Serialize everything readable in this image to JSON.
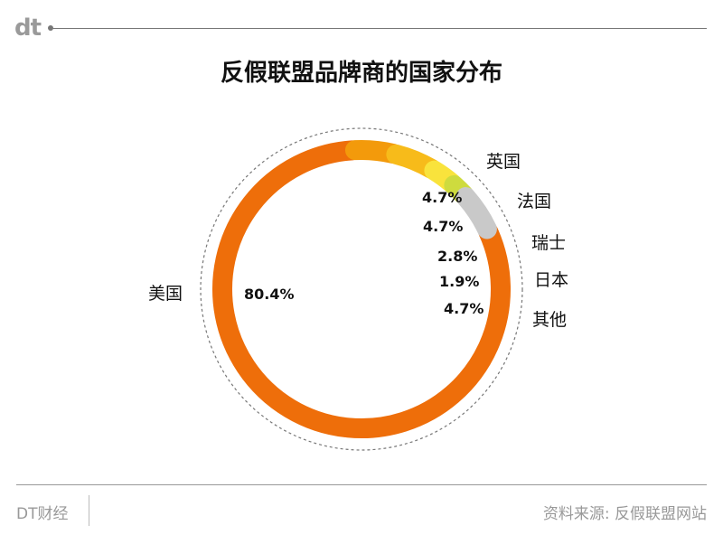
{
  "header": {
    "logo": "dt",
    "title": "反假联盟品牌商的国家分布"
  },
  "footer": {
    "brand": "DT财经",
    "source": "资料来源: 反假联盟网站"
  },
  "chart_data": {
    "type": "pie",
    "style": "donut-arc",
    "title": "反假联盟品牌商的国家分布",
    "series": [
      {
        "name": "美国",
        "value": 80.4,
        "label": "80.4%",
        "color": "#EE6E0A"
      },
      {
        "name": "英国",
        "value": 4.7,
        "label": "4.7%",
        "color": "#F39A0B"
      },
      {
        "name": "法国",
        "value": 4.7,
        "label": "4.7%",
        "color": "#F7BB1A"
      },
      {
        "name": "瑞士",
        "value": 2.8,
        "label": "2.8%",
        "color": "#F9E33C"
      },
      {
        "name": "日本",
        "value": 1.9,
        "label": "1.9%",
        "color": "#CEDB3E"
      },
      {
        "name": "其他",
        "value": 4.7,
        "label": "4.7%",
        "color": "#C9C9C9"
      }
    ]
  }
}
